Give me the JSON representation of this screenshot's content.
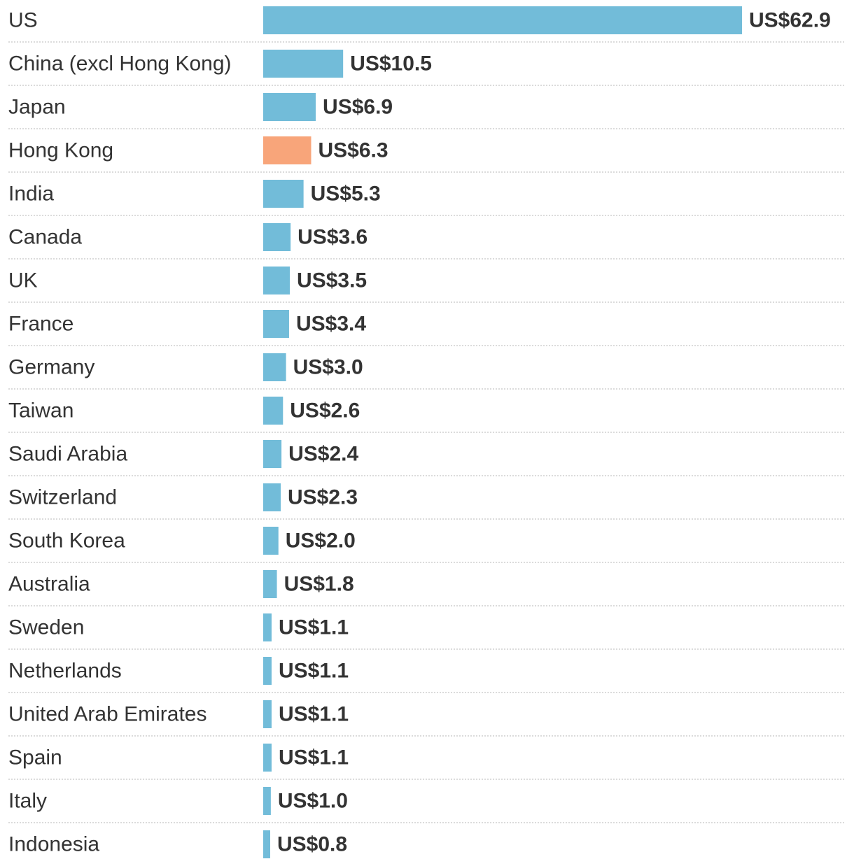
{
  "chart_data": {
    "type": "bar",
    "orientation": "horizontal",
    "value_prefix": "US$",
    "categories": [
      "US",
      "China (excl Hong Kong)",
      "Japan",
      "Hong Kong",
      "India",
      "Canada",
      "UK",
      "France",
      "Germany",
      "Taiwan",
      "Saudi Arabia",
      "Switzerland",
      "South Korea",
      "Australia",
      "Sweden",
      "Netherlands",
      "United Arab Emirates",
      "Spain",
      "Italy",
      "Indonesia"
    ],
    "values": [
      62.9,
      10.5,
      6.9,
      6.3,
      5.3,
      3.6,
      3.5,
      3.4,
      3.0,
      2.6,
      2.4,
      2.3,
      2.0,
      1.8,
      1.1,
      1.1,
      1.1,
      1.1,
      1.0,
      0.8
    ],
    "value_labels": [
      "US$62.9",
      "US$10.5",
      "US$6.9",
      "US$6.3",
      "US$5.3",
      "US$3.6",
      "US$3.5",
      "US$3.4",
      "US$3.0",
      "US$2.6",
      "US$2.4",
      "US$2.3",
      "US$2.0",
      "US$1.8",
      "US$1.1",
      "US$1.1",
      "US$1.1",
      "US$1.1",
      "US$1.0",
      "US$0.8"
    ],
    "highlight_category": "Hong Kong",
    "xlim": [
      0,
      62.9
    ],
    "grid": false,
    "colors": {
      "bar": "#72bcd9",
      "highlight": "#f8a57a",
      "separator": "#cfcfcf",
      "text": "#333333"
    }
  }
}
